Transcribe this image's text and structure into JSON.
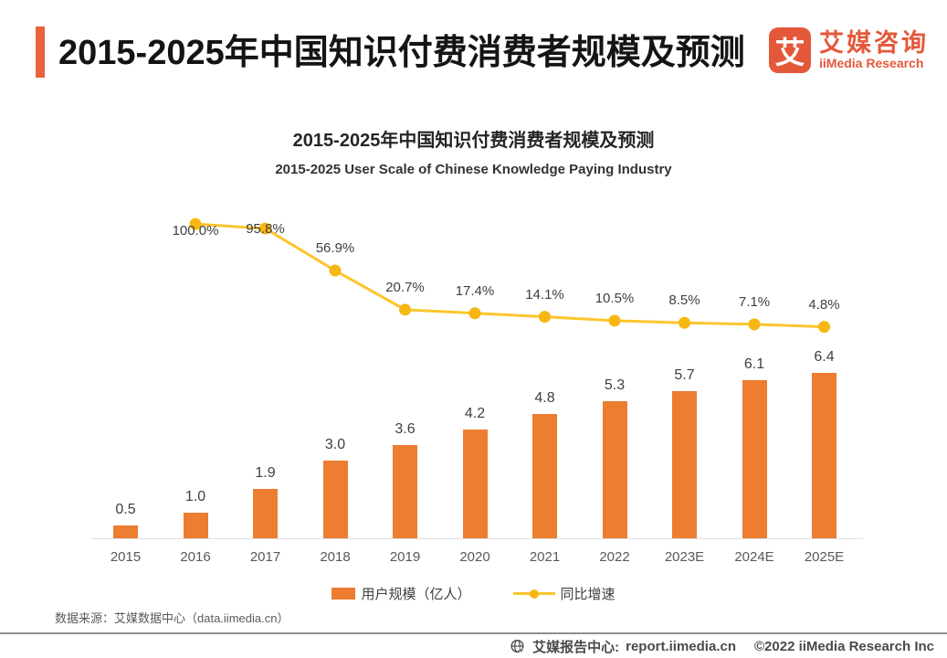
{
  "theme": {
    "accent": "#E8643C",
    "brand": "#E4583A",
    "bar_color": "#ED7D31",
    "line_color": "#FDC52E",
    "dot_color": "#F7B712"
  },
  "header": {
    "title": "2015-2025年中国知识付费消费者规模及预测",
    "logo": {
      "glyph": "艾",
      "brand_cn": "艾媒咨询",
      "brand_en": "iiMedia Research"
    }
  },
  "chart": {
    "title": "2015-2025年中国知识付费消费者规模及预测",
    "subtitle": "2015-2025 User Scale of Chinese Knowledge Paying Industry",
    "legend": [
      {
        "label": "用户规模（亿人）",
        "marker": "bar"
      },
      {
        "label": "同比增速",
        "marker": "line"
      }
    ]
  },
  "chart_data": {
    "type": "bar+line",
    "title": "2015-2025年中国知识付费消费者规模及预测",
    "subtitle": "2015-2025 User Scale of Chinese Knowledge Paying Industry",
    "categories": [
      "2015",
      "2016",
      "2017",
      "2018",
      "2019",
      "2020",
      "2021",
      "2022",
      "2023E",
      "2024E",
      "2025E"
    ],
    "series": [
      {
        "name": "用户规模（亿人）",
        "type": "bar",
        "unit": "亿人",
        "color": "#ED7D31",
        "values": [
          0.5,
          1.0,
          1.9,
          3.0,
          3.6,
          4.2,
          4.8,
          5.3,
          5.7,
          6.1,
          6.4
        ]
      },
      {
        "name": "同比增速",
        "type": "line",
        "unit": "%",
        "color": "#FDC52E",
        "x": [
          "2016",
          "2017",
          "2018",
          "2019",
          "2020",
          "2021",
          "2022",
          "2023E",
          "2024E",
          "2025E"
        ],
        "values": [
          100.0,
          95.8,
          56.9,
          20.7,
          17.4,
          14.1,
          10.5,
          8.5,
          7.1,
          4.8
        ]
      }
    ],
    "xlabel": "",
    "ylabel": "",
    "value_labels": true,
    "grid": false,
    "legend_position": "bottom"
  },
  "source_note": "数据来源：艾媒数据中心（data.iimedia.cn）",
  "footer": {
    "site_label": "艾媒报告中心:",
    "url": "report.iimedia.cn",
    "copyright": "©2022  iiMedia Research Inc"
  }
}
